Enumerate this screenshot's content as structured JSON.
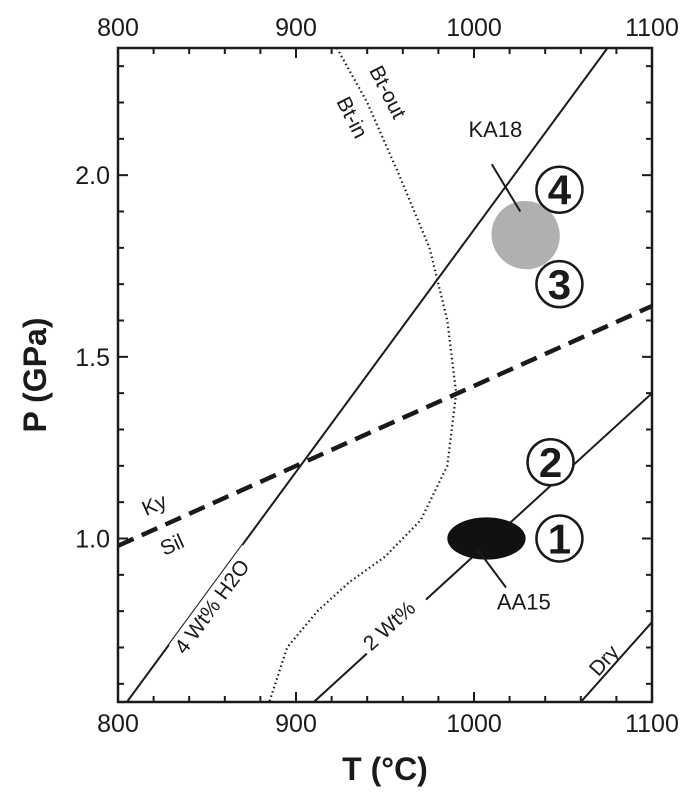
{
  "chart_data": {
    "type": "line",
    "title": "",
    "xlabel": "T (°C)",
    "ylabel": "P (GPa)",
    "xlim": [
      800,
      1100
    ],
    "ylim": [
      0.55,
      2.35
    ],
    "x_ticks": [
      800,
      900,
      1000,
      1100
    ],
    "x_tick_labels": [
      "800",
      "900",
      "1000",
      "1100"
    ],
    "y_ticks": [
      1.0,
      1.5,
      2.0
    ],
    "y_tick_labels": [
      "1.0",
      "1.5",
      "2.0"
    ],
    "grid": false,
    "top_axis_labels": true,
    "series": [
      {
        "name": "4 Wt% H2O",
        "label_text": "4 Wt% H2O",
        "style": "solid",
        "color": "#1a1a1a",
        "x": [
          805,
          1075
        ],
        "y": [
          0.55,
          2.35
        ]
      },
      {
        "name": "2 Wt%",
        "label_text": "2 Wt%",
        "style": "solid",
        "color": "#1a1a1a",
        "x": [
          910,
          1100
        ],
        "y": [
          0.55,
          1.4
        ]
      },
      {
        "name": "Dry",
        "label_text": "Dry",
        "style": "solid",
        "color": "#1a1a1a",
        "x": [
          1060,
          1100
        ],
        "y": [
          0.55,
          0.77
        ]
      },
      {
        "name": "Ky-Sil",
        "label_upper": "Ky",
        "label_lower": "Sil",
        "style": "dashed",
        "color": "#1a1a1a",
        "x": [
          800,
          1100
        ],
        "y": [
          0.98,
          1.64
        ]
      },
      {
        "name": "Bt-in / Bt-out",
        "label_in": "Bt-in",
        "label_out": "Bt-out",
        "style": "dotted",
        "color": "#1a1a1a",
        "x": [
          923,
          940,
          958,
          975,
          985,
          990,
          985,
          970,
          950,
          930,
          912,
          895,
          885
        ],
        "y": [
          2.35,
          2.2,
          2.0,
          1.8,
          1.6,
          1.4,
          1.2,
          1.05,
          0.95,
          0.88,
          0.8,
          0.7,
          0.55
        ]
      }
    ],
    "samples": [
      {
        "name": "KA18",
        "label": "KA18",
        "color": "#b0b0b0",
        "x": 1029,
        "y": 1.835,
        "rx": 19,
        "ry": 0.095,
        "rotation": -45
      },
      {
        "name": "AA15",
        "label": "AA15",
        "color": "#111111",
        "x": 1007,
        "y": 1.0,
        "rx": 22,
        "ry": 0.058,
        "rotation": 0
      }
    ],
    "regions": [
      {
        "label": "1",
        "x": 1048,
        "y": 1.0
      },
      {
        "label": "2",
        "x": 1043,
        "y": 1.21
      },
      {
        "label": "3",
        "x": 1048,
        "y": 1.7
      },
      {
        "label": "4",
        "x": 1048,
        "y": 1.96
      }
    ]
  }
}
